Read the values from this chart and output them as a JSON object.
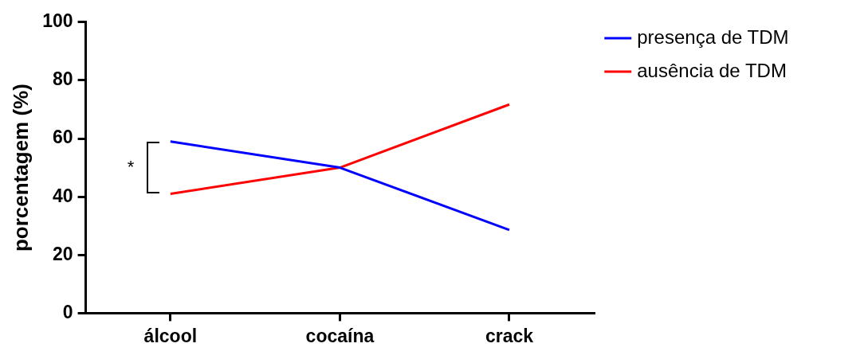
{
  "chart_data": {
    "type": "line",
    "ylabel": "porcentagem (%)",
    "categories": [
      "álcool",
      "cocaína",
      "crack"
    ],
    "series": [
      {
        "name": "presença de TDM",
        "color": "#0000ff",
        "values": [
          59,
          50,
          28.6
        ]
      },
      {
        "name": "ausência de TDM",
        "color": "#ff0000",
        "values": [
          41,
          50,
          71.7
        ]
      }
    ],
    "ylim": [
      0,
      100
    ],
    "yticks": [
      0,
      20,
      40,
      60,
      80,
      100
    ],
    "grid": false,
    "legend": "top right",
    "marker": "none",
    "line_style": "solid",
    "annotations": [
      "*"
    ]
  }
}
